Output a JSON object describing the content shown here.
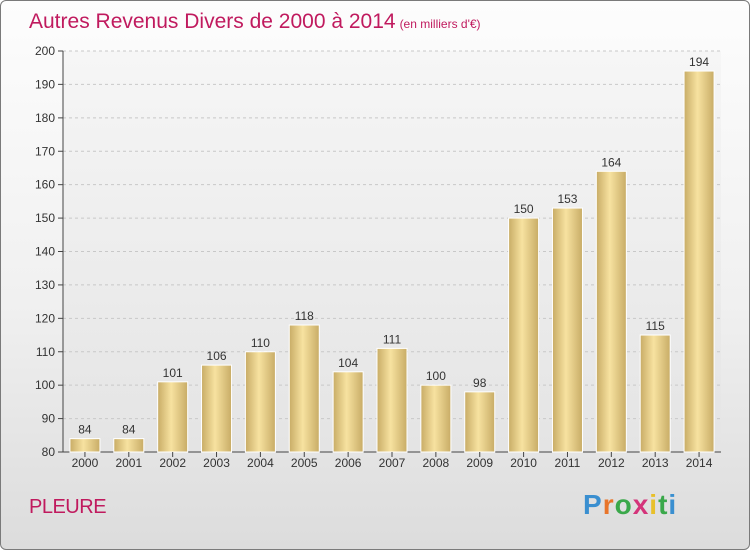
{
  "title": "Autres Revenus Divers de 2000 à 2014",
  "subtitle": "(en milliers d'€)",
  "commune": "PLEURE",
  "logo": {
    "letters": [
      "P",
      "r",
      "o",
      "x",
      "i",
      "t",
      "i"
    ],
    "colors": [
      "#3a8fd0",
      "#e8752a",
      "#3aa84a",
      "#d4347a",
      "#e8c02a",
      "#3aa84a",
      "#3a8fd0"
    ]
  },
  "colors": {
    "title": "#c01a5e",
    "bar_light": "#f7e2a0",
    "bar_dark": "#c8ac66"
  },
  "chart_data": {
    "type": "bar",
    "categories": [
      "2000",
      "2001",
      "2002",
      "2003",
      "2004",
      "2005",
      "2006",
      "2007",
      "2008",
      "2009",
      "2010",
      "2011",
      "2012",
      "2013",
      "2014"
    ],
    "values": [
      84,
      84,
      101,
      106,
      110,
      118,
      104,
      111,
      100,
      98,
      150,
      153,
      164,
      115,
      194
    ],
    "ylim": [
      80,
      200
    ],
    "yticks": [
      80,
      90,
      100,
      110,
      120,
      130,
      140,
      150,
      160,
      170,
      180,
      190,
      200
    ],
    "grid": true
  }
}
